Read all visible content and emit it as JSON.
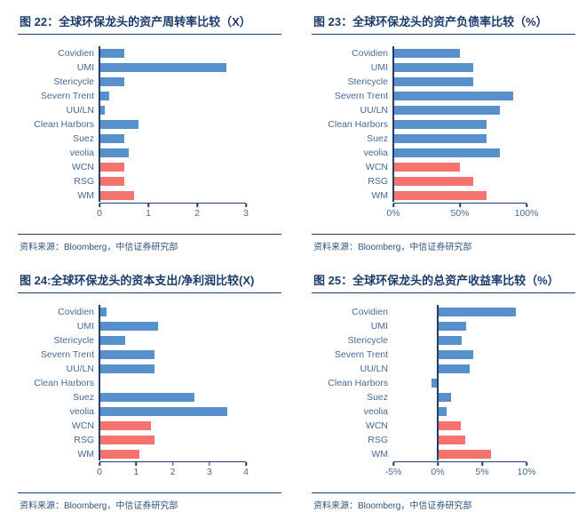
{
  "colors": {
    "bar_blue": "#5890CB",
    "bar_red": "#F4736F",
    "title_text": "#1B3C6B",
    "label_text": "#466A94",
    "axis": "#1F4068",
    "source_text": "#2F547D"
  },
  "source_label": "资料来源：Bloomberg，中信证券研究部",
  "chart_data": [
    {
      "type": "bar",
      "orientation": "horizontal",
      "title": "图 22：全球环保龙头的资产周转率比较（X）",
      "categories": [
        "Covidien",
        "UMI",
        "Stericycle",
        "Severn Trent",
        "UU/LN",
        "Clean Harbors",
        "Suez",
        "veolia",
        "WCN",
        "RSG",
        "WM"
      ],
      "values": [
        0.5,
        2.6,
        0.5,
        0.2,
        0.1,
        0.8,
        0.5,
        0.6,
        0.5,
        0.5,
        0.7
      ],
      "highlight_categories": [
        "WCN",
        "RSG",
        "WM"
      ],
      "xlim": [
        0,
        3
      ],
      "xticks": [
        0,
        1,
        2,
        3
      ],
      "xtick_labels": [
        "0",
        "1",
        "2",
        "3"
      ],
      "grid": false,
      "legend": "none"
    },
    {
      "type": "bar",
      "orientation": "horizontal",
      "title": "图 23：全球环保龙头的资产负债率比较（%）",
      "categories": [
        "Covidien",
        "UMI",
        "Stericycle",
        "Severn Trent",
        "UU/LN",
        "Clean Harbors",
        "Suez",
        "veolia",
        "WCN",
        "RSG",
        "WM"
      ],
      "values": [
        50,
        60,
        60,
        90,
        80,
        70,
        70,
        80,
        50,
        60,
        70
      ],
      "highlight_categories": [
        "WCN",
        "RSG",
        "WM"
      ],
      "xlim": [
        0,
        100
      ],
      "xticks": [
        0,
        50,
        100
      ],
      "xtick_labels": [
        "0%",
        "50%",
        "100%"
      ],
      "grid": false,
      "legend": "none"
    },
    {
      "type": "bar",
      "orientation": "horizontal",
      "title": "图 24:全球环保龙头的资本支出/净利润比较(X)",
      "categories": [
        "Covidien",
        "UMI",
        "Stericycle",
        "Severn Trent",
        "UU/LN",
        "Clean Harbors",
        "Suez",
        "veolia",
        "WCN",
        "RSG",
        "WM"
      ],
      "values": [
        0.2,
        1.6,
        0.7,
        1.5,
        1.5,
        0,
        2.6,
        3.5,
        1.4,
        1.5,
        1.1
      ],
      "highlight_categories": [
        "WCN",
        "RSG",
        "WM"
      ],
      "xlim": [
        0,
        4
      ],
      "xticks": [
        0,
        1,
        2,
        3,
        4
      ],
      "xtick_labels": [
        "0",
        "1",
        "2",
        "3",
        "4"
      ],
      "grid": false,
      "legend": "none"
    },
    {
      "type": "bar",
      "orientation": "horizontal",
      "title": "图 25：全球环保龙头的总资产收益率比较（%）",
      "categories": [
        "Covidien",
        "UMI",
        "Stericycle",
        "Severn Trent",
        "UU/LN",
        "Clean Harbors",
        "Suez",
        "veolia",
        "WCN",
        "RSG",
        "WM"
      ],
      "values": [
        8.8,
        3.2,
        2.7,
        4.0,
        3.6,
        -0.7,
        1.5,
        1.0,
        2.6,
        3.1,
        6.0
      ],
      "highlight_categories": [
        "WCN",
        "RSG",
        "WM"
      ],
      "xlim": [
        -5,
        10
      ],
      "xticks": [
        -5,
        0,
        5,
        10
      ],
      "xtick_labels": [
        "-5%",
        "0%",
        "5%",
        "10%"
      ],
      "grid": false,
      "legend": "none"
    }
  ]
}
